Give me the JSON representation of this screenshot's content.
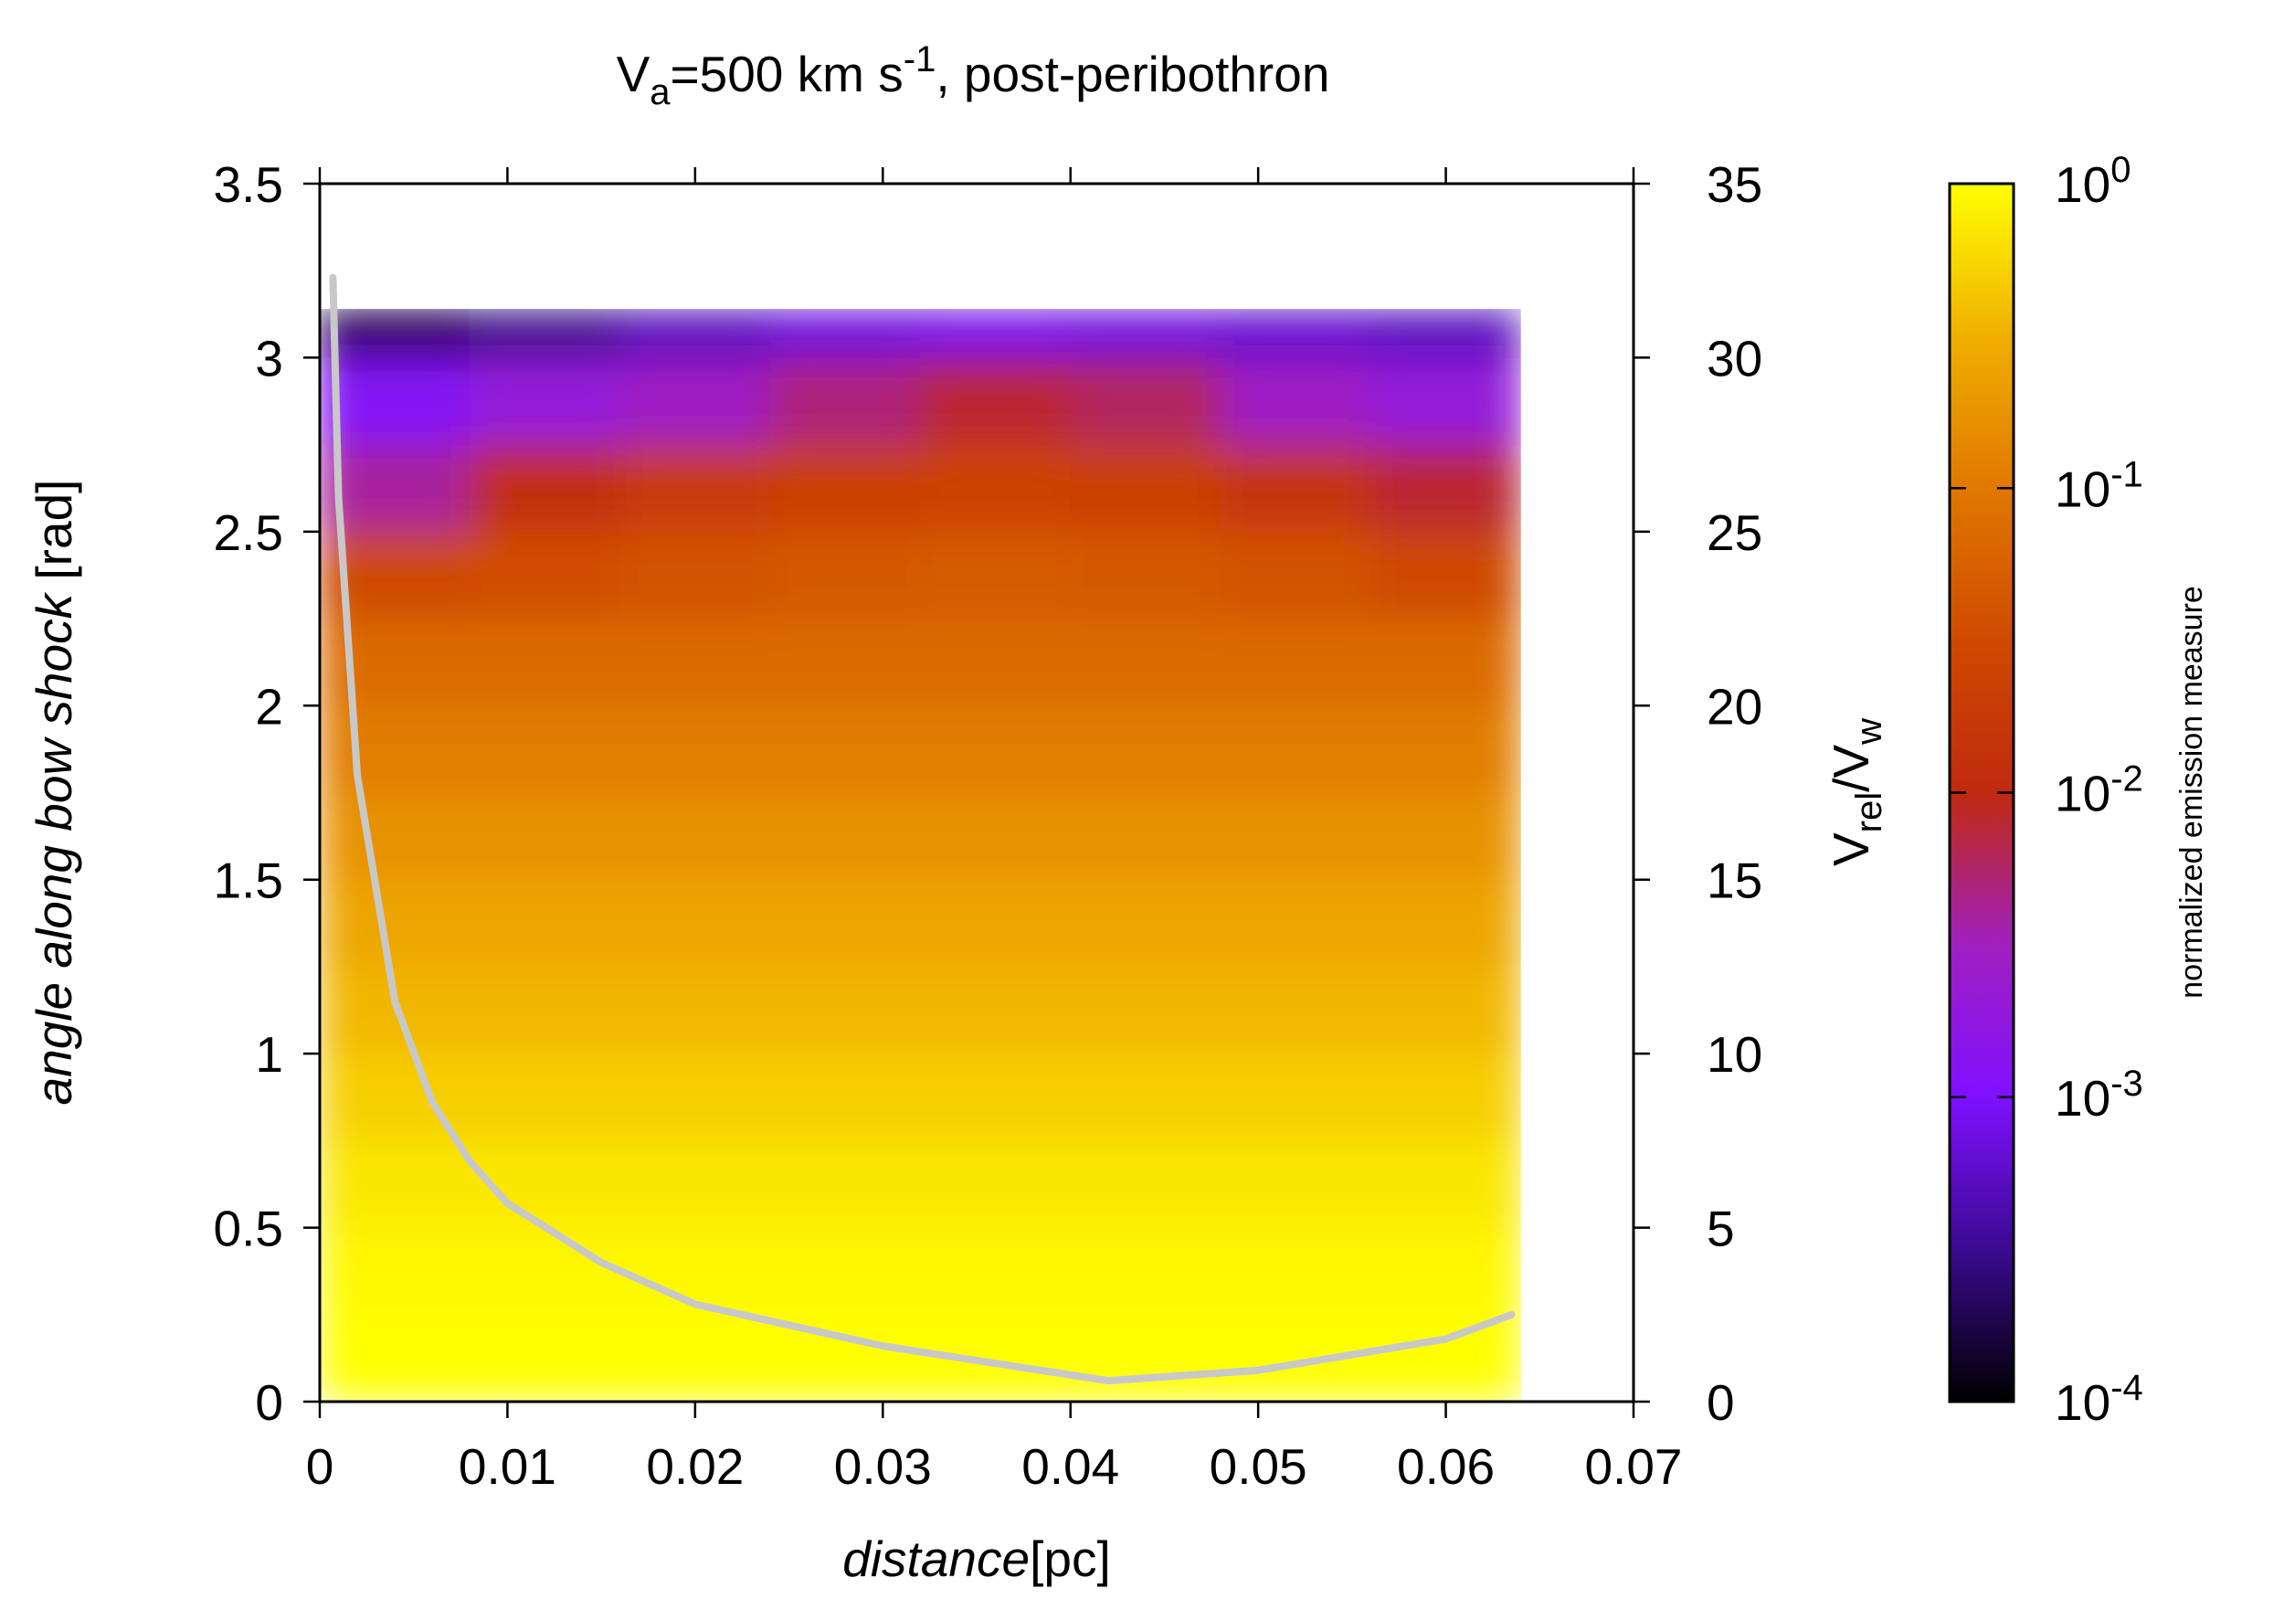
{
  "chart_data": {
    "type": "heatmap",
    "title": [
      "V",
      "a",
      "=500 km s",
      "-1",
      ", post-peribothron"
    ],
    "xlabel": [
      "distance",
      "[pc]"
    ],
    "ylabel": [
      "angle along bow shock",
      " [rad]"
    ],
    "y2label": [
      "V",
      "rel",
      "/V",
      "w"
    ],
    "colorbar_label": "normalized emission measure",
    "xlim": [
      0,
      0.07
    ],
    "xticks": [
      0,
      0.01,
      0.02,
      0.03,
      0.04,
      0.05,
      0.06,
      0.07
    ],
    "ylim": [
      0,
      3.5
    ],
    "yticks": [
      0,
      0.5,
      1,
      1.5,
      2,
      2.5,
      3,
      3.5
    ],
    "y2lim": [
      0,
      35
    ],
    "y2ticks": [
      0,
      5,
      10,
      15,
      20,
      25,
      30,
      35
    ],
    "zlim": [
      0.0001,
      1
    ],
    "zscale": "log",
    "zticks": [
      {
        "value": 0.0001,
        "label": [
          "10",
          "-4"
        ]
      },
      {
        "value": 0.001,
        "label": [
          "10",
          "-3"
        ]
      },
      {
        "value": 0.01,
        "label": [
          "10",
          "-2"
        ]
      },
      {
        "value": 0.1,
        "label": [
          "10",
          "-1"
        ]
      },
      {
        "value": 1,
        "label": [
          "10",
          "0"
        ]
      }
    ],
    "colormap": [
      "#000000",
      "#3a0a90",
      "#7f10ff",
      "#a020c0",
      "#c02a10",
      "#cf4a00",
      "#e07800",
      "#f0b000",
      "#ffff00"
    ],
    "xbins": [
      0,
      0.008,
      0.016,
      0.024,
      0.032,
      0.04,
      0.048,
      0.056,
      0.064
    ],
    "ybins": [
      0,
      0.25,
      0.5,
      0.75,
      1,
      1.25,
      1.5,
      1.75,
      2,
      2.25,
      2.5,
      2.75,
      3,
      3.14
    ],
    "z": [
      [
        1,
        1,
        1,
        1,
        1,
        1,
        1,
        1
      ],
      [
        0.9,
        0.9,
        0.9,
        0.9,
        0.9,
        0.9,
        0.9,
        0.9
      ],
      [
        0.7,
        0.7,
        0.7,
        0.7,
        0.7,
        0.7,
        0.7,
        0.7
      ],
      [
        0.5,
        0.5,
        0.5,
        0.5,
        0.5,
        0.5,
        0.5,
        0.5
      ],
      [
        0.35,
        0.35,
        0.35,
        0.35,
        0.35,
        0.35,
        0.35,
        0.35
      ],
      [
        0.25,
        0.25,
        0.25,
        0.25,
        0.25,
        0.25,
        0.25,
        0.25
      ],
      [
        0.17,
        0.17,
        0.17,
        0.17,
        0.17,
        0.17,
        0.17,
        0.17
      ],
      [
        0.11,
        0.11,
        0.11,
        0.11,
        0.11,
        0.11,
        0.11,
        0.11
      ],
      [
        0.07,
        0.07,
        0.07,
        0.07,
        0.07,
        0.07,
        0.07,
        0.07
      ],
      [
        0.03,
        0.035,
        0.04,
        0.045,
        0.05,
        0.045,
        0.04,
        0.03
      ],
      [
        0.004,
        0.012,
        0.018,
        0.022,
        0.025,
        0.022,
        0.015,
        0.008
      ],
      [
        0.0012,
        0.002,
        0.003,
        0.005,
        0.008,
        0.006,
        0.003,
        0.002
      ],
      [
        0.0002,
        0.0003,
        0.0005,
        0.0007,
        0.0008,
        0.0007,
        0.0006,
        0.0005
      ]
    ],
    "line": {
      "axis": "y2",
      "color": "#c8c8c8",
      "x": [
        0.0007,
        0.001,
        0.002,
        0.004,
        0.006,
        0.008,
        0.01,
        0.015,
        0.02,
        0.03,
        0.042,
        0.05,
        0.06,
        0.0635
      ],
      "values": [
        32.3,
        26,
        18,
        11.5,
        8.6,
        6.9,
        5.7,
        4.0,
        2.8,
        1.6,
        0.6,
        0.9,
        1.8,
        2.5
      ]
    }
  }
}
